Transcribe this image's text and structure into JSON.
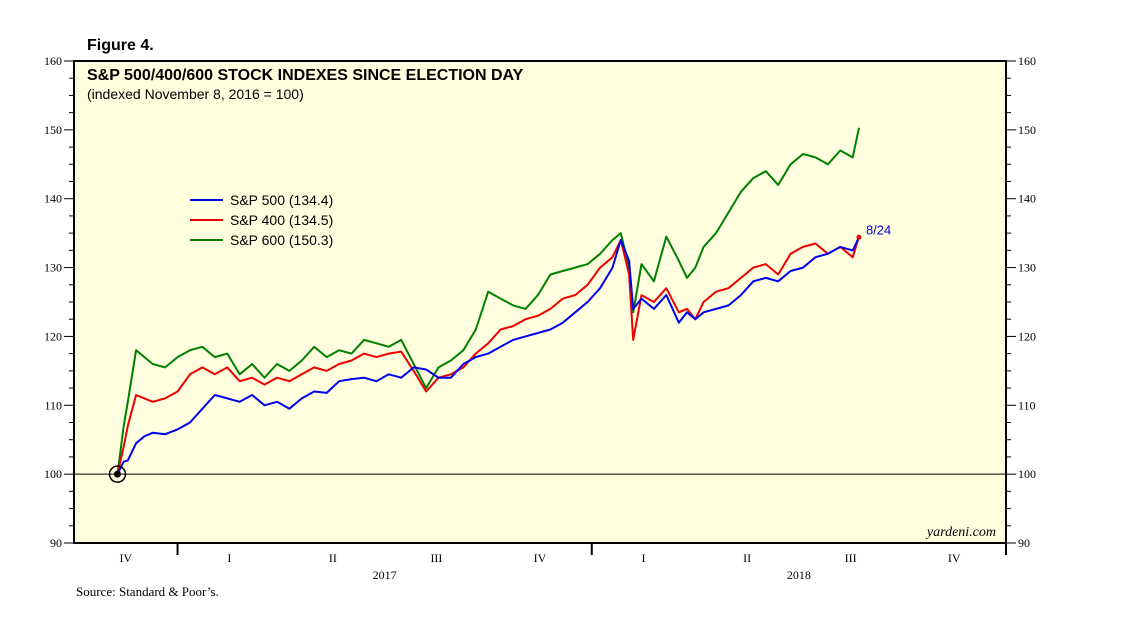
{
  "figure_label": "Figure 4.",
  "source": "Source: Standard & Poor’s.",
  "watermark": "yardeni.com",
  "end_label": "8/24",
  "colors": {
    "background": "#ffffe0",
    "frame": "#000000",
    "sp500": "#0000ee",
    "sp400": "#ee0000",
    "sp600": "#008000"
  },
  "chart_data": {
    "type": "line",
    "title": "S&P 500/400/600 STOCK INDEXES SINCE ELECTION DAY",
    "subtitle": "(indexed November 8, 2016 = 100)",
    "xlabel": "",
    "ylabel": "",
    "ylim": [
      90,
      160
    ],
    "y_ticks": [
      90,
      100,
      110,
      120,
      130,
      140,
      150,
      160
    ],
    "y_tick_labels": [
      "90",
      "100",
      "110",
      "120",
      "130",
      "140",
      "150",
      "160"
    ],
    "reference_line": 100,
    "grid": false,
    "legend_position": "upper-left",
    "x_domain": [
      2016.75,
      2019.0
    ],
    "quarter_labels": [
      {
        "label": "IV",
        "x": 2016.875
      },
      {
        "label": "I",
        "x": 2017.125
      },
      {
        "label": "II",
        "x": 2017.375
      },
      {
        "label": "III",
        "x": 2017.625
      },
      {
        "label": "IV",
        "x": 2017.875
      },
      {
        "label": "I",
        "x": 2018.125
      },
      {
        "label": "II",
        "x": 2018.375
      },
      {
        "label": "III",
        "x": 2018.625
      },
      {
        "label": "IV",
        "x": 2018.875
      }
    ],
    "year_labels": [
      {
        "label": "2017",
        "x": 2017.5
      },
      {
        "label": "2018",
        "x": 2018.5
      }
    ],
    "year_boundaries": [
      2017.0,
      2018.0,
      2019.0
    ],
    "election_marker": {
      "x": 2016.855,
      "y": 100
    },
    "series": [
      {
        "name": "S&P 500",
        "legend": "S&P 500 (134.4)",
        "color": "#0000ee",
        "x": [
          2016.855,
          2016.87,
          2016.88,
          2016.9,
          2016.92,
          2016.94,
          2016.97,
          2017.0,
          2017.03,
          2017.06,
          2017.09,
          2017.12,
          2017.15,
          2017.18,
          2017.21,
          2017.24,
          2017.27,
          2017.3,
          2017.33,
          2017.36,
          2017.39,
          2017.42,
          2017.45,
          2017.48,
          2017.51,
          2017.54,
          2017.57,
          2017.6,
          2017.63,
          2017.66,
          2017.69,
          2017.72,
          2017.75,
          2017.78,
          2017.81,
          2017.84,
          2017.87,
          2017.9,
          2017.93,
          2017.96,
          2017.99,
          2018.02,
          2018.05,
          2018.07,
          2018.09,
          2018.1,
          2018.12,
          2018.15,
          2018.18,
          2018.21,
          2018.23,
          2018.25,
          2018.27,
          2018.3,
          2018.33,
          2018.36,
          2018.39,
          2018.42,
          2018.45,
          2018.48,
          2018.51,
          2018.54,
          2018.57,
          2018.6,
          2018.63,
          2018.645
        ],
        "values": [
          100.0,
          101.8,
          102.0,
          104.5,
          105.5,
          106.0,
          105.8,
          106.5,
          107.5,
          109.5,
          111.5,
          111.0,
          110.5,
          111.5,
          110.0,
          110.5,
          109.5,
          111.0,
          112.0,
          111.8,
          113.5,
          113.8,
          114.0,
          113.5,
          114.5,
          114.0,
          115.5,
          115.2,
          114.0,
          114.0,
          116.0,
          117.0,
          117.5,
          118.5,
          119.5,
          120.0,
          120.5,
          121.0,
          122.0,
          123.5,
          125.0,
          127.0,
          130.0,
          134.0,
          131.0,
          124.0,
          125.5,
          124.0,
          126.0,
          122.0,
          123.5,
          122.5,
          123.5,
          124.0,
          124.5,
          126.0,
          128.0,
          128.5,
          128.0,
          129.5,
          130.0,
          131.5,
          132.0,
          133.0,
          132.5,
          134.4
        ]
      },
      {
        "name": "S&P 400",
        "legend": "S&P 400 (134.5)",
        "color": "#ee0000",
        "x": [
          2016.855,
          2016.87,
          2016.88,
          2016.9,
          2016.92,
          2016.94,
          2016.97,
          2017.0,
          2017.03,
          2017.06,
          2017.09,
          2017.12,
          2017.15,
          2017.18,
          2017.21,
          2017.24,
          2017.27,
          2017.3,
          2017.33,
          2017.36,
          2017.39,
          2017.42,
          2017.45,
          2017.48,
          2017.51,
          2017.54,
          2017.57,
          2017.6,
          2017.63,
          2017.66,
          2017.69,
          2017.72,
          2017.75,
          2017.78,
          2017.81,
          2017.84,
          2017.87,
          2017.9,
          2017.93,
          2017.96,
          2017.99,
          2018.02,
          2018.05,
          2018.07,
          2018.09,
          2018.1,
          2018.12,
          2018.15,
          2018.18,
          2018.21,
          2018.23,
          2018.25,
          2018.27,
          2018.3,
          2018.33,
          2018.36,
          2018.39,
          2018.42,
          2018.45,
          2018.48,
          2018.51,
          2018.54,
          2018.57,
          2018.6,
          2018.63,
          2018.645
        ],
        "values": [
          100.0,
          104.0,
          107.0,
          111.5,
          111.0,
          110.5,
          111.0,
          112.0,
          114.5,
          115.5,
          114.5,
          115.5,
          113.5,
          114.0,
          113.0,
          114.0,
          113.5,
          114.5,
          115.5,
          115.0,
          116.0,
          116.5,
          117.5,
          117.0,
          117.5,
          117.8,
          115.0,
          112.0,
          114.0,
          114.5,
          115.5,
          117.5,
          119.0,
          121.0,
          121.5,
          122.5,
          123.0,
          124.0,
          125.5,
          126.0,
          127.5,
          130.0,
          131.5,
          134.0,
          129.0,
          119.5,
          126.0,
          125.0,
          127.0,
          123.5,
          124.0,
          122.5,
          125.0,
          126.5,
          127.0,
          128.5,
          130.0,
          130.5,
          129.0,
          132.0,
          133.0,
          133.5,
          132.0,
          133.0,
          131.5,
          134.5
        ]
      },
      {
        "name": "S&P 600",
        "legend": "S&P 600 (150.3)",
        "color": "#008000",
        "x": [
          2016.855,
          2016.87,
          2016.88,
          2016.9,
          2016.92,
          2016.94,
          2016.97,
          2017.0,
          2017.03,
          2017.06,
          2017.09,
          2017.12,
          2017.15,
          2017.18,
          2017.21,
          2017.24,
          2017.27,
          2017.3,
          2017.33,
          2017.36,
          2017.39,
          2017.42,
          2017.45,
          2017.48,
          2017.51,
          2017.54,
          2017.57,
          2017.6,
          2017.63,
          2017.66,
          2017.69,
          2017.72,
          2017.75,
          2017.78,
          2017.81,
          2017.84,
          2017.87,
          2017.9,
          2017.93,
          2017.96,
          2017.99,
          2018.02,
          2018.05,
          2018.07,
          2018.09,
          2018.1,
          2018.12,
          2018.15,
          2018.18,
          2018.21,
          2018.23,
          2018.25,
          2018.27,
          2018.3,
          2018.33,
          2018.36,
          2018.39,
          2018.42,
          2018.45,
          2018.48,
          2018.51,
          2018.54,
          2018.57,
          2018.6,
          2018.63,
          2018.645
        ],
        "values": [
          100.0,
          107.0,
          110.5,
          118.0,
          117.0,
          116.0,
          115.5,
          117.0,
          118.0,
          118.5,
          117.0,
          117.5,
          114.5,
          116.0,
          114.0,
          116.0,
          115.0,
          116.5,
          118.5,
          117.0,
          118.0,
          117.5,
          119.5,
          119.0,
          118.5,
          119.5,
          116.0,
          112.5,
          115.5,
          116.5,
          118.0,
          121.0,
          126.5,
          125.5,
          124.5,
          124.0,
          126.0,
          129.0,
          129.5,
          130.0,
          130.5,
          132.0,
          134.0,
          135.0,
          130.0,
          123.5,
          130.5,
          128.0,
          134.5,
          131.0,
          128.5,
          130.0,
          133.0,
          135.0,
          138.0,
          141.0,
          143.0,
          144.0,
          142.0,
          145.0,
          146.5,
          146.0,
          145.0,
          147.0,
          146.0,
          150.3
        ]
      }
    ]
  }
}
